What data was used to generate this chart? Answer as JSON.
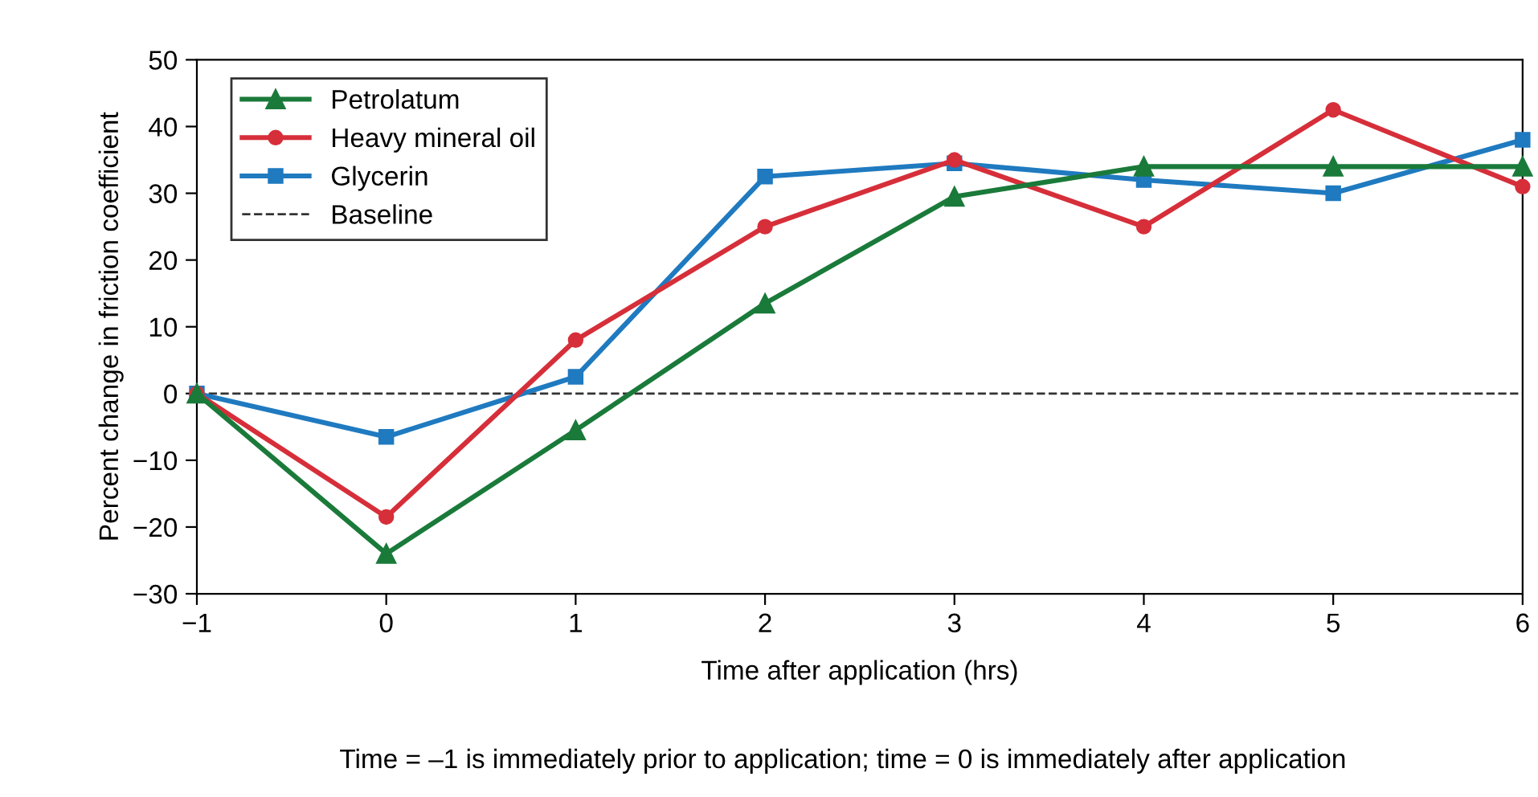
{
  "chart_data": {
    "type": "line",
    "xlabel": "Time after application (hrs)",
    "ylabel": "Percent change in friction coefficient",
    "x": [
      -1,
      0,
      1,
      2,
      3,
      4,
      5,
      6
    ],
    "series": [
      {
        "name": "Petrolatum",
        "color": "#1a7a3a",
        "marker": "triangle",
        "values": [
          0,
          -24,
          -5.5,
          13.5,
          29.5,
          34,
          34,
          34
        ]
      },
      {
        "name": "Heavy mineral oil",
        "color": "#d62f3a",
        "marker": "circle",
        "values": [
          0,
          -18.5,
          8,
          25,
          35,
          25,
          42.5,
          31
        ]
      },
      {
        "name": "Glycerin",
        "color": "#1f7ac0",
        "marker": "square",
        "values": [
          0,
          -6.5,
          2.5,
          32.5,
          34.5,
          32,
          30,
          38
        ]
      }
    ],
    "ref_lines": [
      {
        "axis": "y",
        "value": 0,
        "label": "Baseline",
        "color": "#333333",
        "line_style": "dashed"
      }
    ],
    "xlim": [
      -1,
      6
    ],
    "xticks": [
      {
        "value": -1,
        "label": "−1"
      },
      0,
      1,
      2,
      3,
      4,
      5,
      6
    ],
    "ylim": [
      -30,
      50
    ],
    "yticks": [
      {
        "value": -30,
        "label": "−30"
      },
      {
        "value": -20,
        "label": "−20"
      },
      {
        "value": -10,
        "label": "−10"
      },
      0,
      10,
      20,
      30,
      40,
      50
    ],
    "grid": false,
    "legend": "top left",
    "line_style": "solid",
    "annotations": [
      "Time = –1 is immediately prior to application; time = 0 is immediately after application"
    ]
  }
}
